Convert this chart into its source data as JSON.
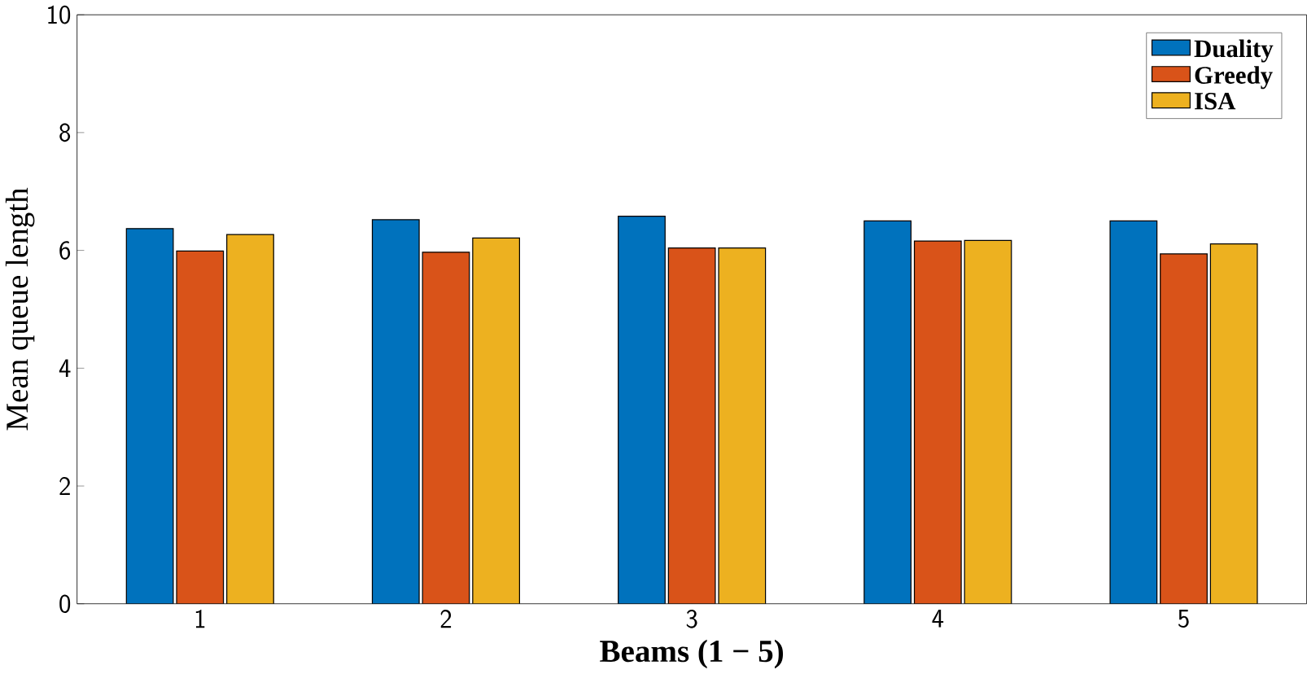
{
  "chart_data": {
    "type": "bar",
    "xlabel": "Beams (1 − 5)",
    "ylabel": "Mean queue length",
    "categories": [
      "1",
      "2",
      "3",
      "4",
      "5"
    ],
    "series": [
      {
        "name": "Duality",
        "color": "#0072bd",
        "values": [
          6.37,
          6.52,
          6.58,
          6.5,
          6.5
        ]
      },
      {
        "name": "Greedy",
        "color": "#d95319",
        "values": [
          5.99,
          5.97,
          6.04,
          6.16,
          5.94
        ]
      },
      {
        "name": "ISA",
        "color": "#edb120",
        "values": [
          6.27,
          6.21,
          6.04,
          6.17,
          6.11
        ]
      }
    ],
    "ylim": [
      0,
      10
    ],
    "yticks": [
      0,
      2,
      4,
      6,
      8,
      10
    ],
    "legend": "top right",
    "grid": false
  }
}
